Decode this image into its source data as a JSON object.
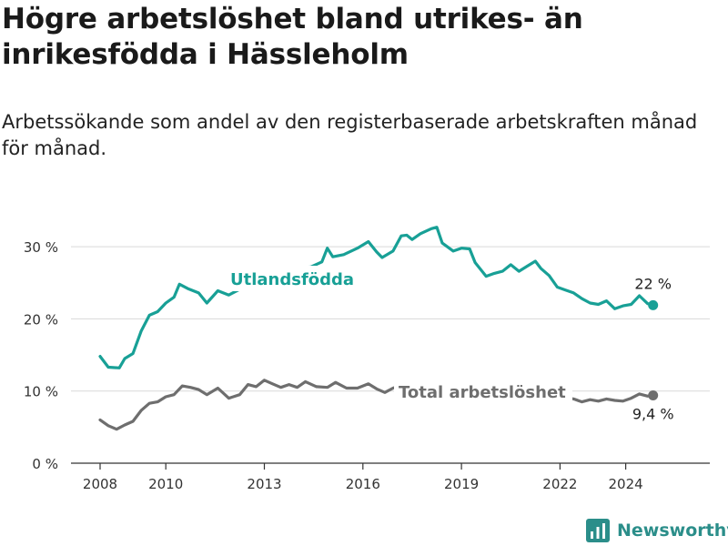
{
  "title": "Högre arbetslöshet bland utrikes- än inrikesfödda i Hässleholm",
  "subtitle": "Arbetssökande som andel av den registerbaserade arbetskraften månad för månad.",
  "brand": "Newsworthy",
  "colors": {
    "foreign": "#18a096",
    "total": "#6e6e6e",
    "grid": "#d9d9d9",
    "brand": "#2b8e8a"
  },
  "chart_data": {
    "type": "line",
    "xlabel": "",
    "ylabel": "",
    "x_ticks": [
      "2008",
      "2010",
      "2013",
      "2016",
      "2019",
      "2022",
      "2024"
    ],
    "y_ticks": [
      "0 %",
      "10 %",
      "20 %",
      "30 %"
    ],
    "ylim": [
      0,
      33
    ],
    "grid": true,
    "series": [
      {
        "name": "Utlandsfödda",
        "color": "#18a096",
        "end_label": "22 %",
        "points": [
          [
            "2008-01",
            14.8
          ],
          [
            "2008-04",
            13.3
          ],
          [
            "2008-08",
            13.2
          ],
          [
            "2008-10",
            14.5
          ],
          [
            "2009-01",
            15.2
          ],
          [
            "2009-04",
            18.3
          ],
          [
            "2009-07",
            20.5
          ],
          [
            "2009-10",
            21.0
          ],
          [
            "2010-01",
            22.2
          ],
          [
            "2010-04",
            23.0
          ],
          [
            "2010-06",
            24.8
          ],
          [
            "2010-09",
            24.2
          ],
          [
            "2011-01",
            23.6
          ],
          [
            "2011-04",
            22.2
          ],
          [
            "2011-08",
            23.9
          ],
          [
            "2011-12",
            23.3
          ],
          [
            "2012-04",
            24.1
          ],
          [
            "2012-09",
            25.8
          ],
          [
            "2012-11",
            27.1
          ],
          [
            "2013-03",
            26.2
          ],
          [
            "2013-08",
            26.6
          ],
          [
            "2014-01",
            27.0
          ],
          [
            "2014-06",
            27.2
          ],
          [
            "2014-10",
            27.9
          ],
          [
            "2014-12",
            29.8
          ],
          [
            "2015-02",
            28.6
          ],
          [
            "2015-06",
            28.9
          ],
          [
            "2015-11",
            29.8
          ],
          [
            "2016-03",
            30.7
          ],
          [
            "2016-06",
            29.3
          ],
          [
            "2016-08",
            28.5
          ],
          [
            "2016-12",
            29.4
          ],
          [
            "2017-03",
            31.5
          ],
          [
            "2017-05",
            31.6
          ],
          [
            "2017-07",
            31.0
          ],
          [
            "2017-10",
            31.8
          ],
          [
            "2018-02",
            32.5
          ],
          [
            "2018-04",
            32.7
          ],
          [
            "2018-06",
            30.5
          ],
          [
            "2018-10",
            29.4
          ],
          [
            "2019-01",
            29.8
          ],
          [
            "2019-04",
            29.7
          ],
          [
            "2019-06",
            27.8
          ],
          [
            "2019-10",
            25.9
          ],
          [
            "2020-01",
            26.3
          ],
          [
            "2020-04",
            26.6
          ],
          [
            "2020-07",
            27.5
          ],
          [
            "2020-10",
            26.6
          ],
          [
            "2021-01",
            27.3
          ],
          [
            "2021-04",
            28.0
          ],
          [
            "2021-06",
            27.0
          ],
          [
            "2021-09",
            26.0
          ],
          [
            "2021-12",
            24.4
          ],
          [
            "2022-03",
            24.0
          ],
          [
            "2022-06",
            23.6
          ],
          [
            "2022-09",
            22.8
          ],
          [
            "2022-12",
            22.2
          ],
          [
            "2023-03",
            22.0
          ],
          [
            "2023-06",
            22.5
          ],
          [
            "2023-09",
            21.4
          ],
          [
            "2023-12",
            21.8
          ],
          [
            "2024-03",
            22.0
          ],
          [
            "2024-06",
            23.2
          ],
          [
            "2024-09",
            22.1
          ],
          [
            "2024-11",
            21.9
          ]
        ]
      },
      {
        "name": "Total arbetslöshet",
        "color": "#6e6e6e",
        "end_label": "9,4 %",
        "points": [
          [
            "2008-01",
            6.0
          ],
          [
            "2008-04",
            5.2
          ],
          [
            "2008-07",
            4.7
          ],
          [
            "2008-10",
            5.3
          ],
          [
            "2009-01",
            5.8
          ],
          [
            "2009-04",
            7.3
          ],
          [
            "2009-07",
            8.3
          ],
          [
            "2009-10",
            8.5
          ],
          [
            "2010-01",
            9.2
          ],
          [
            "2010-04",
            9.5
          ],
          [
            "2010-07",
            10.7
          ],
          [
            "2010-10",
            10.5
          ],
          [
            "2011-01",
            10.2
          ],
          [
            "2011-04",
            9.5
          ],
          [
            "2011-08",
            10.4
          ],
          [
            "2011-12",
            9.0
          ],
          [
            "2012-04",
            9.5
          ],
          [
            "2012-07",
            10.9
          ],
          [
            "2012-10",
            10.6
          ],
          [
            "2013-01",
            11.5
          ],
          [
            "2013-04",
            11.0
          ],
          [
            "2013-07",
            10.5
          ],
          [
            "2013-10",
            10.9
          ],
          [
            "2014-01",
            10.5
          ],
          [
            "2014-04",
            11.3
          ],
          [
            "2014-08",
            10.6
          ],
          [
            "2014-12",
            10.5
          ],
          [
            "2015-03",
            11.2
          ],
          [
            "2015-07",
            10.4
          ],
          [
            "2015-11",
            10.4
          ],
          [
            "2016-03",
            11.0
          ],
          [
            "2016-06",
            10.3
          ],
          [
            "2016-09",
            9.8
          ],
          [
            "2016-12",
            10.4
          ],
          [
            "2017-03",
            10.8
          ],
          [
            "2017-06",
            10.6
          ],
          [
            "2017-09",
            10.0
          ],
          [
            "2017-12",
            10.2
          ],
          [
            "2018-03",
            10.3
          ],
          [
            "2018-06",
            9.8
          ],
          [
            "2018-09",
            9.9
          ],
          [
            "2018-12",
            10.2
          ],
          [
            "2019-03",
            10.0
          ],
          [
            "2019-06",
            9.6
          ],
          [
            "2019-09",
            9.4
          ],
          [
            "2019-12",
            9.7
          ],
          [
            "2020-03",
            9.8
          ],
          [
            "2020-06",
            10.1
          ],
          [
            "2020-09",
            9.9
          ],
          [
            "2020-12",
            10.0
          ],
          [
            "2021-03",
            9.8
          ],
          [
            "2021-06",
            9.6
          ],
          [
            "2021-09",
            9.3
          ],
          [
            "2021-12",
            9.0
          ],
          [
            "2022-03",
            9.1
          ],
          [
            "2022-06",
            8.9
          ],
          [
            "2022-09",
            8.5
          ],
          [
            "2022-12",
            8.8
          ],
          [
            "2023-03",
            8.6
          ],
          [
            "2023-06",
            8.9
          ],
          [
            "2023-09",
            8.7
          ],
          [
            "2023-12",
            8.6
          ],
          [
            "2024-03",
            9.0
          ],
          [
            "2024-06",
            9.6
          ],
          [
            "2024-09",
            9.3
          ],
          [
            "2024-11",
            9.4
          ]
        ]
      }
    ]
  }
}
